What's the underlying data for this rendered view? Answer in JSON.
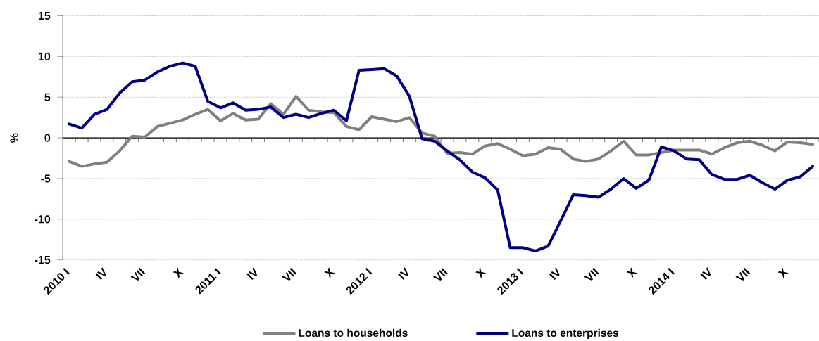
{
  "chart_data": {
    "type": "line",
    "ylabel": "%",
    "categories": [
      "2010 I",
      null,
      null,
      "IV",
      null,
      null,
      "VII",
      null,
      null,
      "X",
      null,
      null,
      "2011 I",
      null,
      null,
      "IV",
      null,
      null,
      "VII",
      null,
      null,
      "X",
      null,
      null,
      "2012 I",
      null,
      null,
      "IV",
      null,
      null,
      "VII",
      null,
      null,
      "X",
      null,
      null,
      "2013 I",
      null,
      null,
      "IV",
      null,
      null,
      "VII",
      null,
      null,
      "X",
      null,
      null,
      "2014 I",
      null,
      null,
      "IV",
      null,
      null,
      "VII",
      null,
      null,
      "X",
      null,
      null
    ],
    "series": [
      {
        "name": "Loans to households",
        "color": "#808080",
        "values": [
          -2.9,
          -3.5,
          -3.2,
          -3.0,
          -1.6,
          0.2,
          0.1,
          1.4,
          1.8,
          2.2,
          2.9,
          3.5,
          2.1,
          3.0,
          2.2,
          2.3,
          4.2,
          2.9,
          5.1,
          3.4,
          3.2,
          3.1,
          1.4,
          1.0,
          2.6,
          2.3,
          2.0,
          2.5,
          0.6,
          0.2,
          -1.9,
          -1.8,
          -2.0,
          -1.0,
          -0.7,
          -1.4,
          -2.2,
          -2.0,
          -1.2,
          -1.4,
          -2.6,
          -2.9,
          -2.6,
          -1.6,
          -0.4,
          -2.1,
          -2.1,
          -1.8,
          -1.5,
          -1.5,
          -1.5,
          -2.0,
          -1.2,
          -0.6,
          -0.4,
          -0.9,
          -1.6,
          -0.5,
          -0.6,
          -0.8
        ]
      },
      {
        "name": "Loans to enterprises",
        "color": "#000080",
        "values": [
          1.7,
          1.2,
          2.9,
          3.5,
          5.5,
          6.9,
          7.1,
          8.1,
          8.8,
          9.2,
          8.8,
          4.5,
          3.7,
          4.3,
          3.4,
          3.5,
          3.8,
          2.5,
          2.9,
          2.5,
          3.0,
          3.4,
          2.1,
          8.3,
          8.4,
          8.5,
          7.6,
          5.1,
          -0.1,
          -0.4,
          -1.6,
          -2.7,
          -4.2,
          -4.9,
          -6.4,
          -13.5,
          -13.5,
          -13.9,
          -13.3,
          -10.2,
          -7.0,
          -7.1,
          -7.3,
          -6.3,
          -5.0,
          -6.2,
          -5.2,
          -1.1,
          -1.6,
          -2.6,
          -2.7,
          -4.5,
          -5.1,
          -5.1,
          -4.6,
          -5.5,
          -6.3,
          -5.2,
          -4.8,
          -3.5
        ]
      }
    ],
    "ylim": [
      -15,
      15
    ],
    "yticks": [
      -15,
      -10,
      -5,
      0,
      5,
      10,
      15
    ],
    "grid": "y",
    "legend": "bottom",
    "line_style": "solid"
  }
}
